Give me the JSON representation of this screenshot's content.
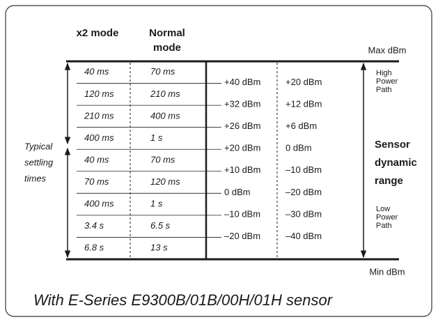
{
  "header": {
    "x2_mode": "x2 mode",
    "normal_mode": [
      "Normal",
      "mode"
    ],
    "max": "Max dBm",
    "min": "Min dBm"
  },
  "rows": [
    [
      "40 ms",
      "70 ms"
    ],
    [
      "120 ms",
      "210 ms"
    ],
    [
      "210 ms",
      "400 ms"
    ],
    [
      "400 ms",
      "1 s"
    ],
    [
      "40 ms",
      "70 ms"
    ],
    [
      "70 ms",
      "120 ms"
    ],
    [
      "400 ms",
      "1 s"
    ],
    [
      "3.4 s",
      "6.5 s"
    ],
    [
      "6.8 s",
      "13 s"
    ]
  ],
  "normal_dbm": [
    "+40 dBm",
    "+32 dBm",
    "+26 dBm",
    "+20 dBm",
    "+10 dBm",
    "0 dBm",
    "–10 dBm",
    "–20 dBm"
  ],
  "x2_dbm": [
    "+20 dBm",
    "+12 dBm",
    "+6 dBm",
    "0 dBm",
    "–10 dBm",
    "–20 dBm",
    "–30 dBm",
    "–40 dBm"
  ],
  "left_label": [
    "Typical",
    "settling",
    "times"
  ],
  "high_path": [
    "High",
    "Power",
    "Path"
  ],
  "range_label": [
    "Sensor",
    "dynamic",
    "range"
  ],
  "low_path": [
    "Low",
    "Power",
    "Path"
  ],
  "footer": "With E-Series E9300B/01B/00H/01H sensor"
}
